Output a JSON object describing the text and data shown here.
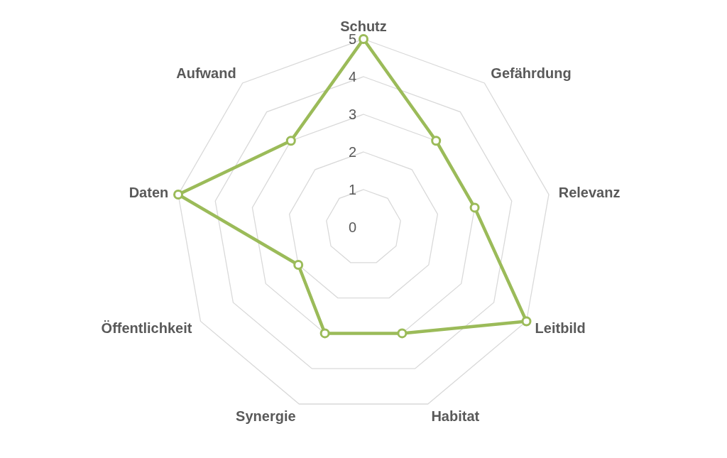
{
  "chart_data": {
    "type": "radar",
    "categories": [
      "Schutz",
      "Gefährdung",
      "Relevanz",
      "Leitbild",
      "Habitat",
      "Synergie",
      "Öffentlichkeit",
      "Daten",
      "Aufwand"
    ],
    "series": [
      {
        "color": "#9bbb59",
        "values": [
          5,
          3,
          3,
          5,
          3,
          3,
          2,
          5,
          3
        ]
      }
    ],
    "ylim": [
      0,
      5
    ],
    "yticks": [
      0,
      1,
      2,
      3,
      4,
      5
    ],
    "grid": true,
    "marker": "circle"
  }
}
